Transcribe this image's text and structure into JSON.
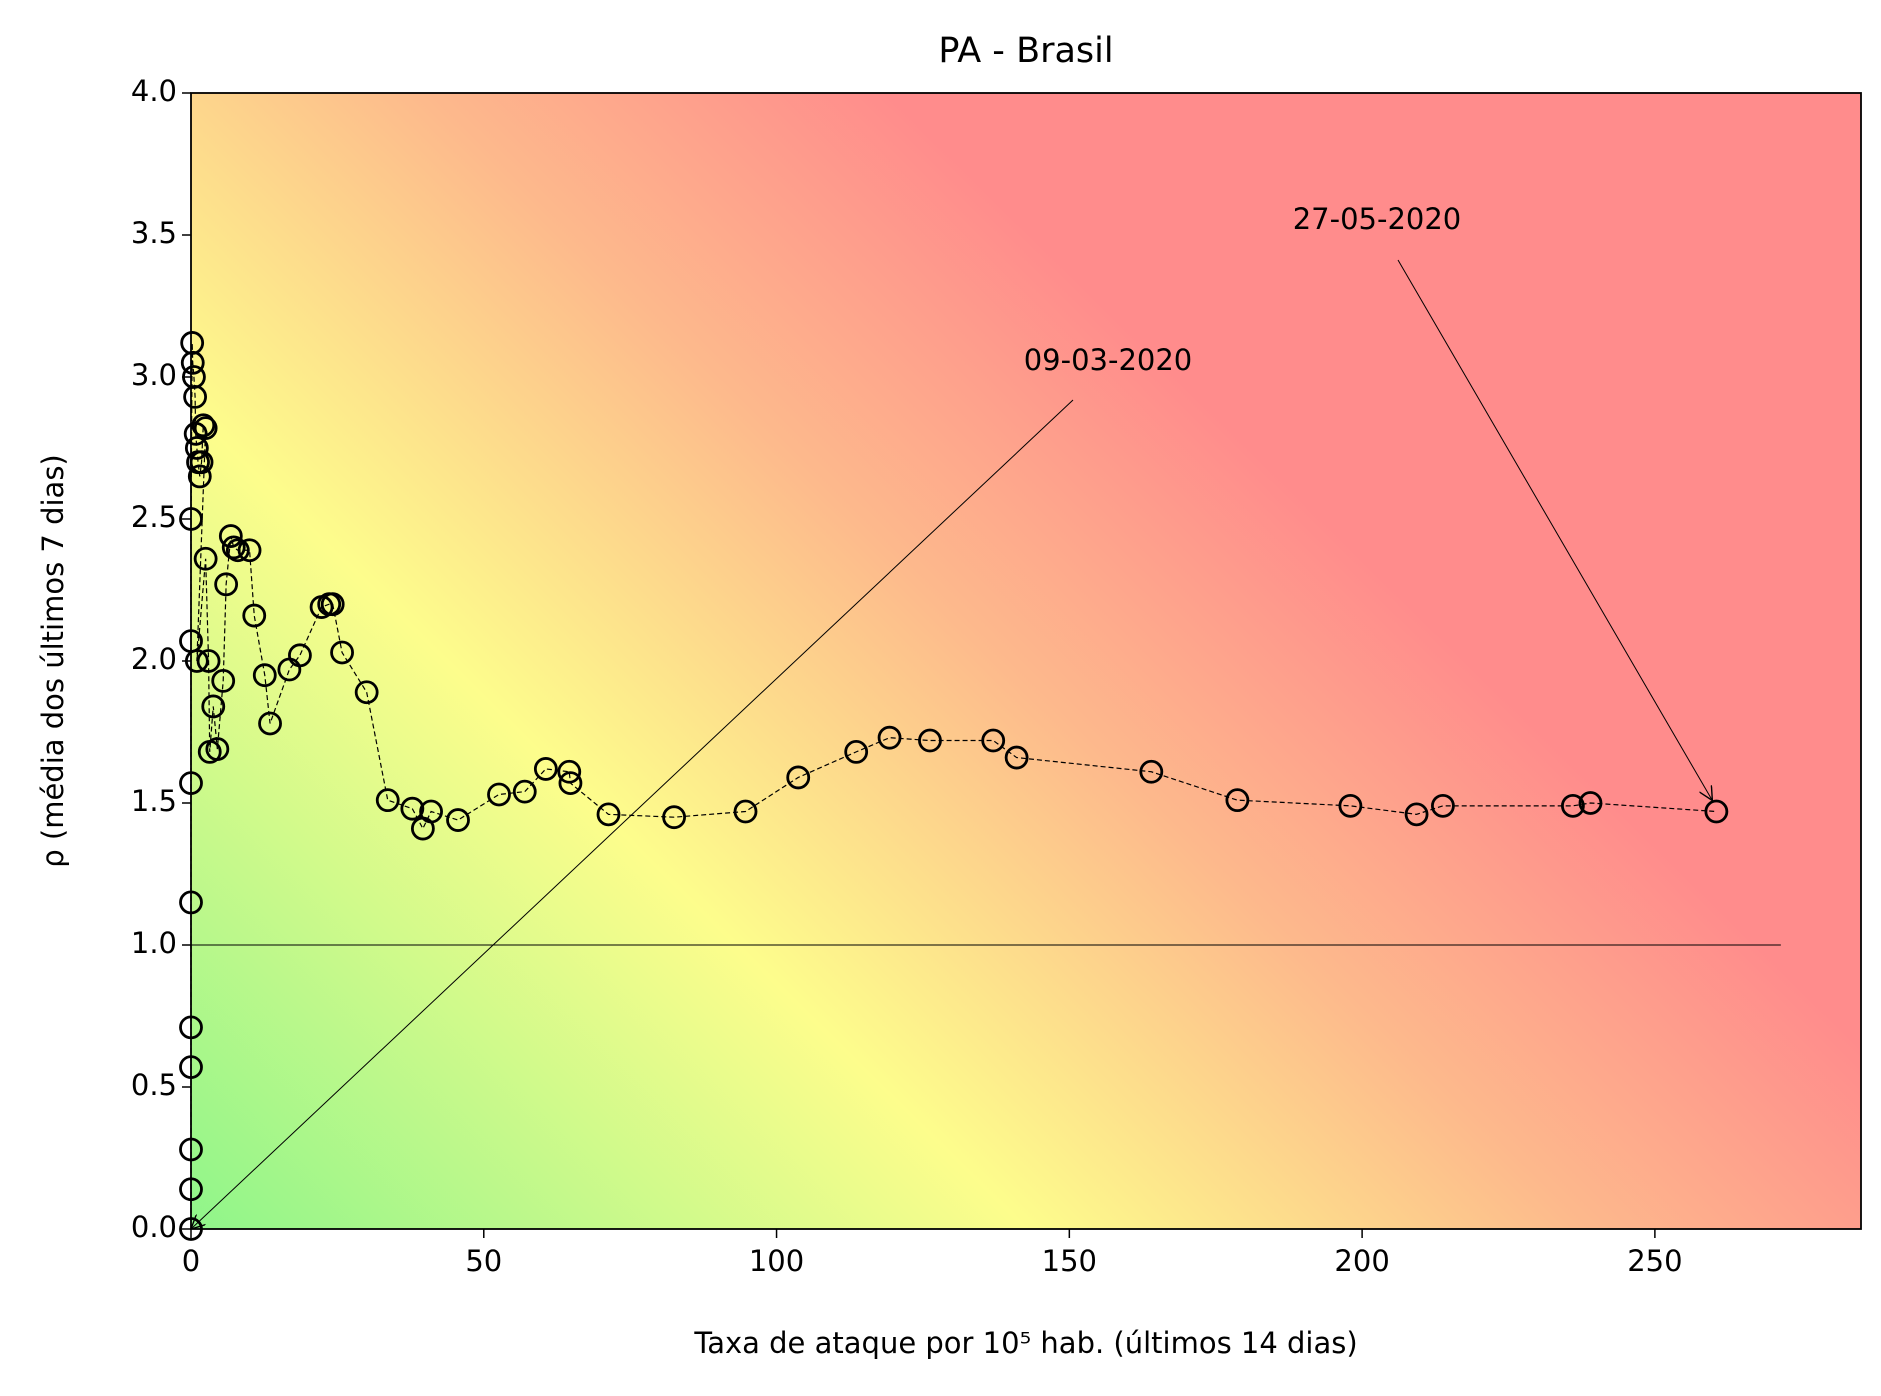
{
  "chart_data": {
    "type": "scatter",
    "title": "PA - Brasil",
    "xlabel": "Taxa de ataque por 10⁵ hab. (últimos 14 dias)",
    "ylabel": "ρ (média dos últimos 7 dias)",
    "x": [
      0,
      0,
      0,
      0,
      0,
      0,
      0,
      0,
      0,
      0.2,
      0.3,
      0.5,
      0.7,
      0.8,
      1,
      1.2,
      1.5,
      1.8,
      2.1,
      2.5,
      1.0,
      2.5,
      3,
      3.2,
      3.8,
      4.5,
      5.5,
      6,
      6.8,
      7.3,
      8,
      10,
      10.8,
      12.6,
      13.5,
      16.8,
      18.6,
      22.3,
      23.6,
      24.2,
      25.8,
      30,
      33.6,
      37.8,
      39.6,
      41,
      45.6,
      52.6,
      57,
      60.6,
      64.6,
      64.8,
      71.3,
      82.5,
      94.7,
      103.7,
      113.6,
      119.3,
      126.2,
      137,
      141,
      164,
      178.7,
      198,
      209.3,
      213.8,
      236,
      239,
      260.5
    ],
    "series": [
      {
        "color": "#000000",
        "values": [
          0,
          0.14,
          0.28,
          0.57,
          0.71,
          1.15,
          1.57,
          2.07,
          2.5,
          3.12,
          3.05,
          3.0,
          2.93,
          2.8,
          2.75,
          2.7,
          2.65,
          2.7,
          2.83,
          2.82,
          2.0,
          2.36,
          2.0,
          1.68,
          1.84,
          1.69,
          1.93,
          2.27,
          2.44,
          2.4,
          2.39,
          2.39,
          2.16,
          1.95,
          1.78,
          1.97,
          2.02,
          2.19,
          2.2,
          2.2,
          2.03,
          1.89,
          1.51,
          1.48,
          1.41,
          1.47,
          1.44,
          1.53,
          1.54,
          1.62,
          1.61,
          1.57,
          1.46,
          1.45,
          1.47,
          1.59,
          1.68,
          1.73,
          1.72,
          1.72,
          1.66,
          1.61,
          1.51,
          1.49,
          1.46,
          1.49,
          1.49,
          1.5,
          1.47
        ]
      }
    ],
    "annotations": [
      "09-03-2020",
      "27-05-2020"
    ],
    "xlim": [
      0,
      285.2
    ],
    "ylim": [
      0,
      4
    ],
    "xticks": [
      0,
      50,
      100,
      150,
      200,
      250
    ],
    "yticks": [
      {
        "value": 0,
        "label": "0.0"
      },
      0.5,
      {
        "value": 1,
        "label": "1.0"
      },
      1.5,
      {
        "value": 2,
        "label": "2.0"
      },
      2.5,
      {
        "value": 3,
        "label": "3.0"
      },
      3.5,
      {
        "value": 4,
        "label": "4.0"
      }
    ]
  }
}
